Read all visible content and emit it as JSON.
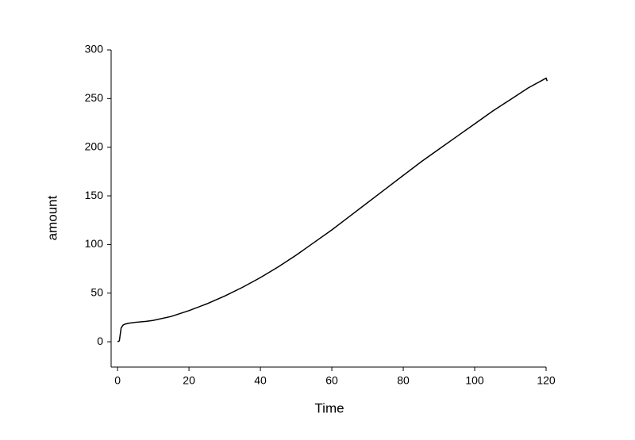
{
  "chart_data": {
    "type": "line",
    "x_label": "Time",
    "y_label": "amount",
    "series": [
      {
        "color": "#000000",
        "x": [
          0,
          0.5,
          1,
          1.5,
          2,
          3,
          5,
          8,
          10,
          15,
          20,
          25,
          30,
          35,
          40,
          45,
          50,
          55,
          60,
          65,
          70,
          75,
          80,
          85,
          90,
          95,
          100,
          105,
          110,
          115,
          120,
          120.3
        ],
        "values": [
          0,
          1,
          14,
          17,
          18,
          19,
          20,
          21,
          22,
          26,
          32,
          39,
          47,
          56,
          66,
          77,
          89,
          102,
          115,
          129,
          143,
          157,
          171,
          185,
          198,
          211,
          224,
          237,
          249,
          261,
          271,
          268
        ]
      }
    ],
    "xlim": [
      -1.8,
      120
    ],
    "xticks": [
      0,
      20,
      40,
      60,
      80,
      100,
      120
    ],
    "ylim": [
      -26,
      300
    ],
    "yticks": [
      0,
      50,
      100,
      150,
      200,
      250,
      300
    ],
    "grid": false
  }
}
